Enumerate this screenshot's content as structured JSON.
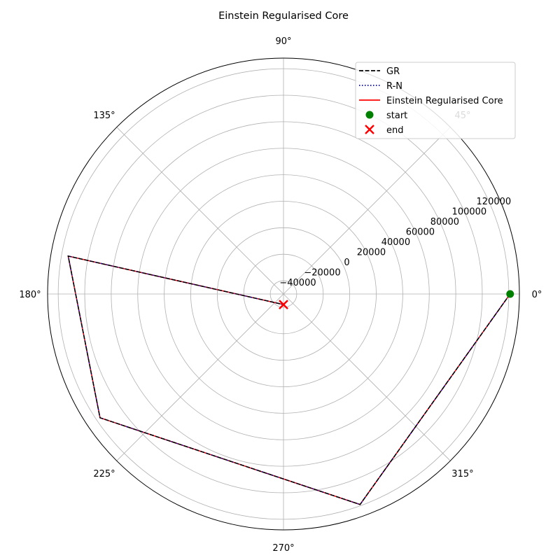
{
  "chart_data": {
    "type": "polar-line",
    "title": "Einstein Regularised Core",
    "theta_ticks": [
      "0°",
      "45°",
      "90°",
      "135°",
      "180°",
      "225°",
      "270°",
      "315°"
    ],
    "r_ticks": [
      "−40000",
      "−20000",
      "0",
      "20000",
      "40000",
      "60000",
      "80000",
      "100000",
      "120000"
    ],
    "r_tick_values": [
      -40000,
      -20000,
      0,
      20000,
      40000,
      60000,
      80000,
      100000,
      120000
    ],
    "rlim": [
      -50000,
      128000
    ],
    "grid": true,
    "legend_position": "top-right",
    "series": [
      {
        "name": "GR",
        "style": "dashed",
        "color": "#000000",
        "theta_deg": [
          0,
          290,
          214,
          170,
          270
        ],
        "r": [
          121000,
          119000,
          117000,
          115000,
          -42000
        ]
      },
      {
        "name": "R-N",
        "style": "dotted",
        "color": "#0000cc",
        "theta_deg": [
          0,
          290,
          214,
          170,
          270
        ],
        "r": [
          121000,
          119000,
          117000,
          115000,
          -42000
        ]
      },
      {
        "name": "Einstein Regularised Core",
        "style": "solid",
        "color": "#ff0000",
        "theta_deg": [
          0,
          290,
          214,
          170,
          270
        ],
        "r": [
          121000,
          119000,
          117000,
          115000,
          -42000
        ]
      }
    ],
    "markers": [
      {
        "name": "start",
        "symbol": "circle",
        "color": "#008000",
        "theta_deg": 0,
        "r": 121000
      },
      {
        "name": "end",
        "symbol": "x",
        "color": "#ff0000",
        "theta_deg": 270,
        "r": -42000
      }
    ]
  }
}
